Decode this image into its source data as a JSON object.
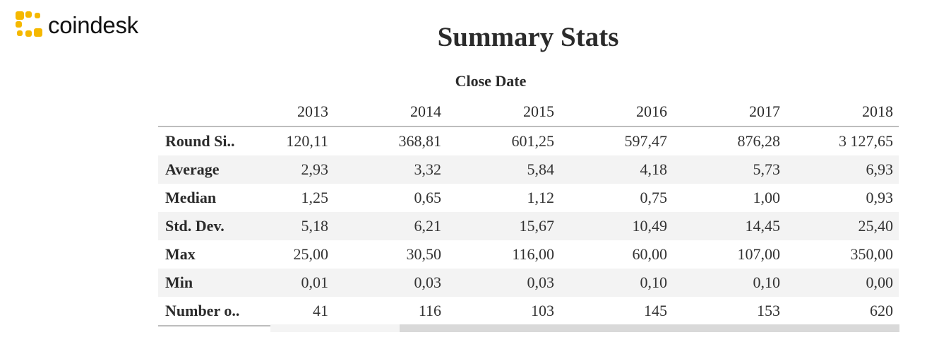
{
  "brand": {
    "name": "coindesk",
    "icon": "coindesk-logo-icon",
    "accent": "#f5b800"
  },
  "title": "Summary Stats",
  "column_group_label": "Close Date",
  "table": {
    "columns": [
      "2013",
      "2014",
      "2015",
      "2016",
      "2017",
      "2018"
    ],
    "rows": [
      {
        "label": "Round Si..",
        "values": [
          "120,11",
          "368,81",
          "601,25",
          "597,47",
          "876,28",
          "3 127,65"
        ]
      },
      {
        "label": "Average",
        "values": [
          "2,93",
          "3,32",
          "5,84",
          "4,18",
          "5,73",
          "6,93"
        ]
      },
      {
        "label": "Median",
        "values": [
          "1,25",
          "0,65",
          "1,12",
          "0,75",
          "1,00",
          "0,93"
        ]
      },
      {
        "label": "Std. Dev.",
        "values": [
          "5,18",
          "6,21",
          "15,67",
          "10,49",
          "14,45",
          "25,40"
        ]
      },
      {
        "label": "Max",
        "values": [
          "25,00",
          "30,50",
          "116,00",
          "60,00",
          "107,00",
          "350,00"
        ]
      },
      {
        "label": "Min",
        "values": [
          "0,01",
          "0,03",
          "0,03",
          "0,10",
          "0,10",
          "0,00"
        ]
      },
      {
        "label": "Number o..",
        "values": [
          "41",
          "116",
          "103",
          "145",
          "153",
          "620"
        ]
      }
    ]
  },
  "scrollbar": {
    "visible_fraction": 0.79
  }
}
